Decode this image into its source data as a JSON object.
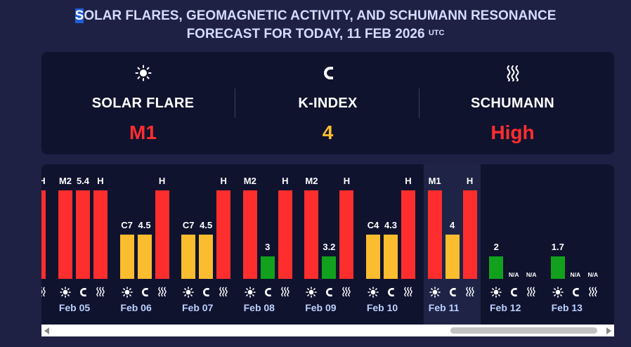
{
  "header": {
    "title_first_letter": "S",
    "title_line1_rest": "OLAR FLARES, GEOMAGNETIC ACTIVITY, AND SCHUMANN RESONANCE",
    "title_line2": "FORECAST FOR TODAY, 11 FEB 2026",
    "title_sup": "UTC"
  },
  "summary": {
    "solar_flare": {
      "label": "SOLAR FLARE",
      "value": "M1",
      "icon": "sun-icon",
      "color": "#ff2e2e"
    },
    "k_index": {
      "label": "K-INDEX",
      "value": "4",
      "icon": "magnet-icon",
      "color": "#fbbd30"
    },
    "schumann": {
      "label": "SCHUMANN",
      "value": "High",
      "icon": "wave-icon",
      "color": "#ff2e2e"
    }
  },
  "colors": {
    "red": "#ff2e2e",
    "yellow": "#fbbd30",
    "green": "#11a11c",
    "background": "#1e2143",
    "panel": "#10132e"
  },
  "chart_data": {
    "type": "bar",
    "series": [
      {
        "name": "SOLAR FLARE",
        "values": [
          "M2",
          "C7",
          "C7",
          "M2",
          "M2",
          "C4",
          "M1",
          "",
          ""
        ]
      },
      {
        "name": "K-INDEX",
        "values": [
          5.4,
          4.5,
          4.5,
          3,
          3.2,
          4.3,
          4,
          2,
          1.7
        ]
      },
      {
        "name": "SCHUMANN",
        "values": [
          "H",
          "H",
          "H",
          "H",
          "H",
          "H",
          "H",
          "N/A",
          "N/A"
        ]
      }
    ],
    "categories": [
      "Feb 05",
      "Feb 06",
      "Feb 07",
      "Feb 08",
      "Feb 09",
      "Feb 10",
      "Feb 11",
      "Feb 12",
      "Feb 13"
    ],
    "partial_left_column_schumann": "H",
    "today": "Feb 11",
    "days": [
      {
        "date": "Feb 05",
        "flare": "M2",
        "flare_level": "high",
        "k": "5.4",
        "k_level": "high",
        "schumann": "H",
        "schumann_level": "high"
      },
      {
        "date": "Feb 06",
        "flare": "C7",
        "flare_level": "mid",
        "k": "4.5",
        "k_level": "mid",
        "schumann": "H",
        "schumann_level": "high"
      },
      {
        "date": "Feb 07",
        "flare": "C7",
        "flare_level": "mid",
        "k": "4.5",
        "k_level": "mid",
        "schumann": "H",
        "schumann_level": "high"
      },
      {
        "date": "Feb 08",
        "flare": "M2",
        "flare_level": "high",
        "k": "3",
        "k_level": "low",
        "schumann": "H",
        "schumann_level": "high"
      },
      {
        "date": "Feb 09",
        "flare": "M2",
        "flare_level": "high",
        "k": "3.2",
        "k_level": "low",
        "schumann": "H",
        "schumann_level": "high"
      },
      {
        "date": "Feb 10",
        "flare": "C4",
        "flare_level": "mid",
        "k": "4.3",
        "k_level": "mid",
        "schumann": "H",
        "schumann_level": "high"
      },
      {
        "date": "Feb 11",
        "flare": "M1",
        "flare_level": "high",
        "k": "4",
        "k_level": "mid",
        "schumann": "H",
        "schumann_level": "high"
      },
      {
        "date": "Feb 12",
        "flare": "",
        "flare_level": "none",
        "k": "2",
        "k_level": "low",
        "schumann": "N/A",
        "schumann_level": "none",
        "flare_na": "N/A"
      },
      {
        "date": "Feb 13",
        "flare": "",
        "flare_level": "none",
        "k": "1.7",
        "k_level": "low",
        "schumann": "N/A",
        "schumann_level": "none",
        "flare_na": "N/A"
      }
    ]
  }
}
